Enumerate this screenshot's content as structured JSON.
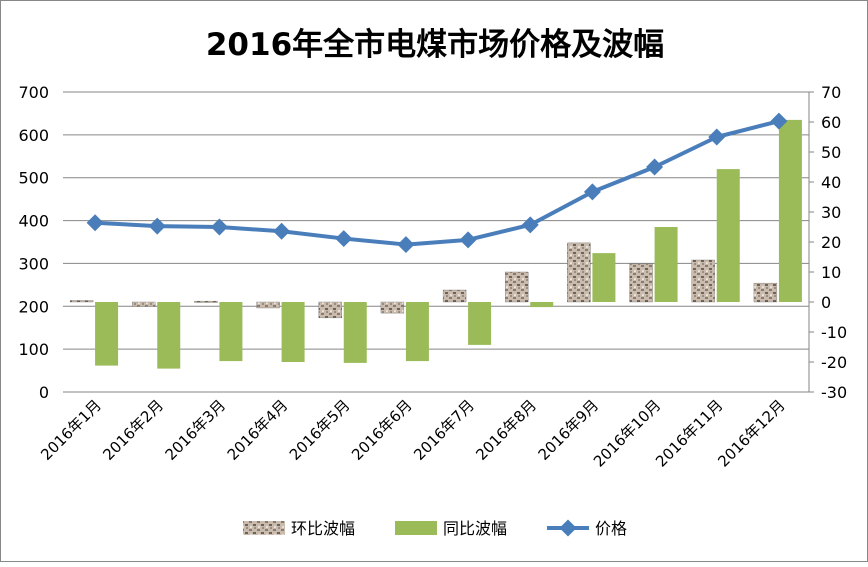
{
  "chart_data": {
    "type": "bar+line",
    "title": "2016年全市电煤市场价格及波幅",
    "categories": [
      "2016年1月",
      "2016年2月",
      "2016年3月",
      "2016年4月",
      "2016年5月",
      "2016年6月",
      "2016年7月",
      "2016年8月",
      "2016年9月",
      "2016年10月",
      "2016年11月",
      "2016年12月"
    ],
    "left_axis": {
      "ylim": [
        0,
        700
      ],
      "ticks": [
        "0",
        "100",
        "200",
        "300",
        "400",
        "500",
        "600",
        "700"
      ]
    },
    "right_axis": {
      "ylim": [
        -30,
        70
      ],
      "ticks": [
        "-30",
        "-20",
        "-10",
        "0",
        "10",
        "20",
        "30",
        "40",
        "50",
        "60",
        "70"
      ]
    },
    "grid": true,
    "legend_position": "bottom",
    "series": [
      {
        "name": "环比波幅",
        "type": "bar",
        "axis": "right",
        "pattern": "granite",
        "values": [
          0.5,
          -1.5,
          0.3,
          -2,
          -5.3,
          -3.7,
          4,
          10,
          19.7,
          12.7,
          14,
          6.3
        ]
      },
      {
        "name": "同比波幅",
        "type": "bar",
        "axis": "right",
        "color": "#9BBB59",
        "values": [
          -21.2,
          -22.2,
          -19.7,
          -20,
          -20.3,
          -19.7,
          -14.3,
          -1.7,
          16.3,
          25,
          44.3,
          60.7
        ]
      },
      {
        "name": "价格",
        "type": "line",
        "axis": "left",
        "color": "#4A7EBB",
        "values": [
          395,
          387,
          385,
          375,
          358,
          344,
          355,
          390,
          467,
          525,
          595,
          632
        ]
      }
    ]
  }
}
